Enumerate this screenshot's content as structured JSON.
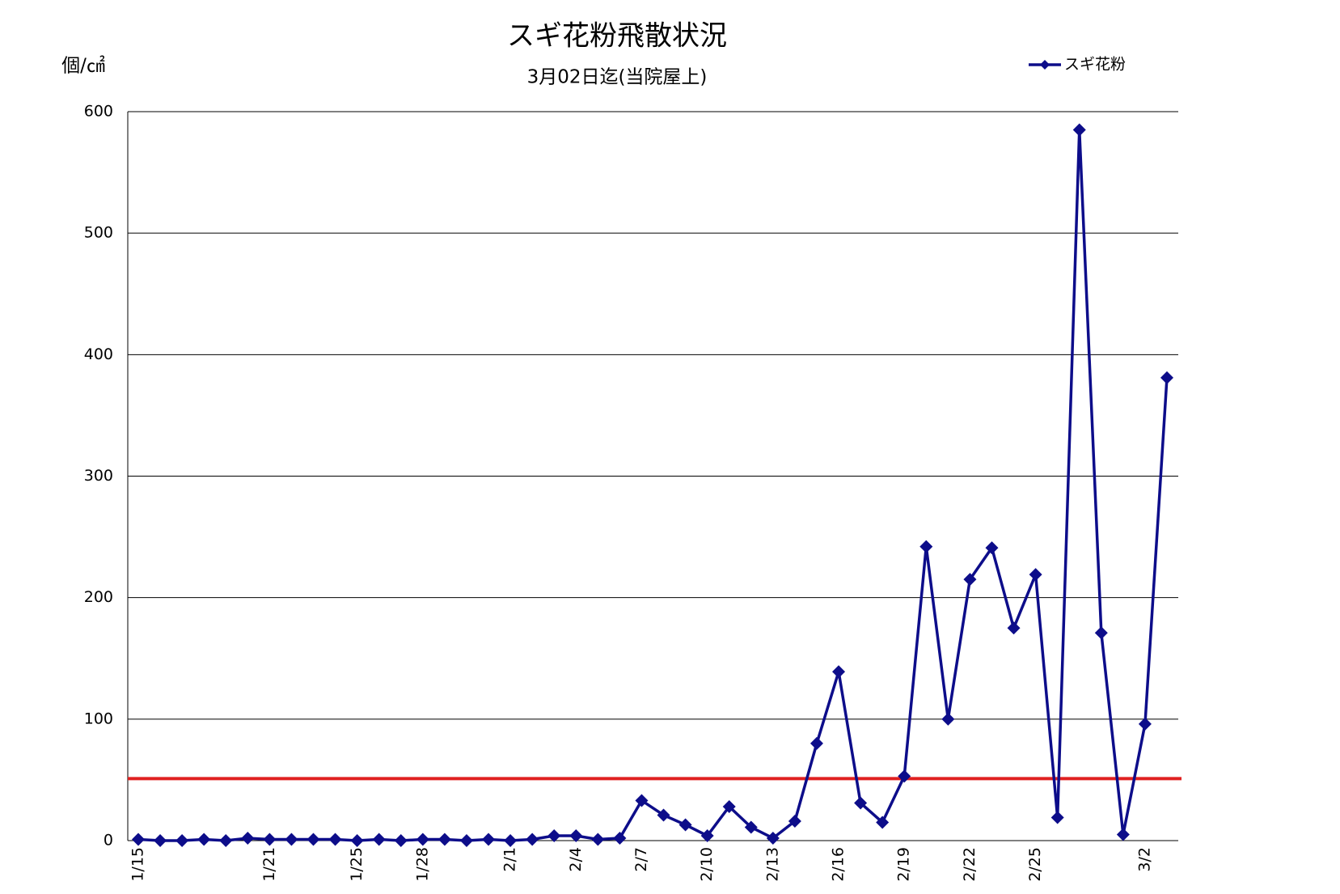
{
  "chart_data": {
    "type": "line",
    "title": "スギ花粉飛散状況",
    "subtitle": "3月02日迄(当院屋上)",
    "y_axis_label": "個/㎠",
    "categories": [
      "1/15",
      null,
      null,
      null,
      null,
      null,
      "1/21",
      null,
      null,
      null,
      "1/25",
      null,
      null,
      "1/28",
      null,
      null,
      null,
      "2/1",
      null,
      null,
      "2/4",
      null,
      null,
      "2/7",
      null,
      null,
      "2/10",
      null,
      null,
      "2/13",
      null,
      null,
      "2/16",
      null,
      null,
      "2/19",
      null,
      null,
      "2/22",
      null,
      null,
      "2/25",
      null,
      null,
      null,
      null,
      "3/2",
      null
    ],
    "series": [
      {
        "name": "スギ花粉",
        "color": "#0d0d8a",
        "values": [
          1,
          0,
          0,
          1,
          0,
          2,
          1,
          1,
          1,
          1,
          0,
          1,
          0,
          1,
          1,
          0,
          1,
          0,
          1,
          4,
          4,
          1,
          2,
          33,
          21,
          13,
          4,
          28,
          11,
          2,
          16,
          80,
          139,
          31,
          15,
          53,
          242,
          100,
          215,
          241,
          175,
          219,
          19,
          585,
          171,
          5,
          96,
          381
        ]
      }
    ],
    "reference_line": 51,
    "reference_color": "#e02020",
    "ylim": [
      0,
      600
    ],
    "yticks": [
      0,
      100,
      200,
      300,
      400,
      500,
      600
    ],
    "grid": true,
    "legend": "top-right"
  }
}
